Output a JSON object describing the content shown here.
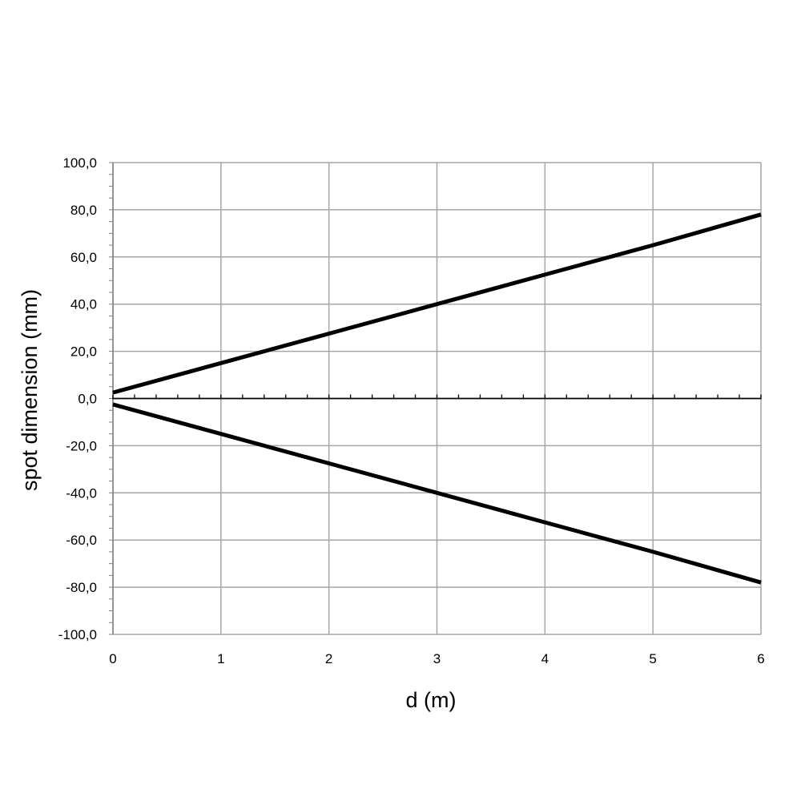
{
  "chart_data": {
    "type": "line",
    "title": "",
    "xlabel": "d (m)",
    "ylabel": "spot dimension (mm)",
    "xlim": [
      0,
      6
    ],
    "ylim": [
      -100,
      100
    ],
    "x_ticks": [
      "0",
      "1",
      "2",
      "3",
      "4",
      "5",
      "6"
    ],
    "y_ticks": [
      "100,0",
      "80,0",
      "60,0",
      "40,0",
      "20,0",
      "0,0",
      "-20,0",
      "-40,0",
      "-60,0",
      "-80,0",
      "-100,0"
    ],
    "grid": true,
    "legend": "none",
    "colors": {
      "series": "#000000",
      "grid": "#a6a6a6",
      "axis": "#000000"
    },
    "series": [
      {
        "x": [
          0,
          1,
          2,
          3,
          4,
          5,
          6
        ],
        "y": [
          2.5,
          15.0,
          27.5,
          40.0,
          52.5,
          65.0,
          78.0
        ]
      },
      {
        "x": [
          0,
          1,
          2,
          3,
          4,
          5,
          6
        ],
        "y": [
          -2.5,
          -15.0,
          -27.5,
          -40.0,
          -52.5,
          -65.0,
          -78.0
        ]
      }
    ]
  }
}
